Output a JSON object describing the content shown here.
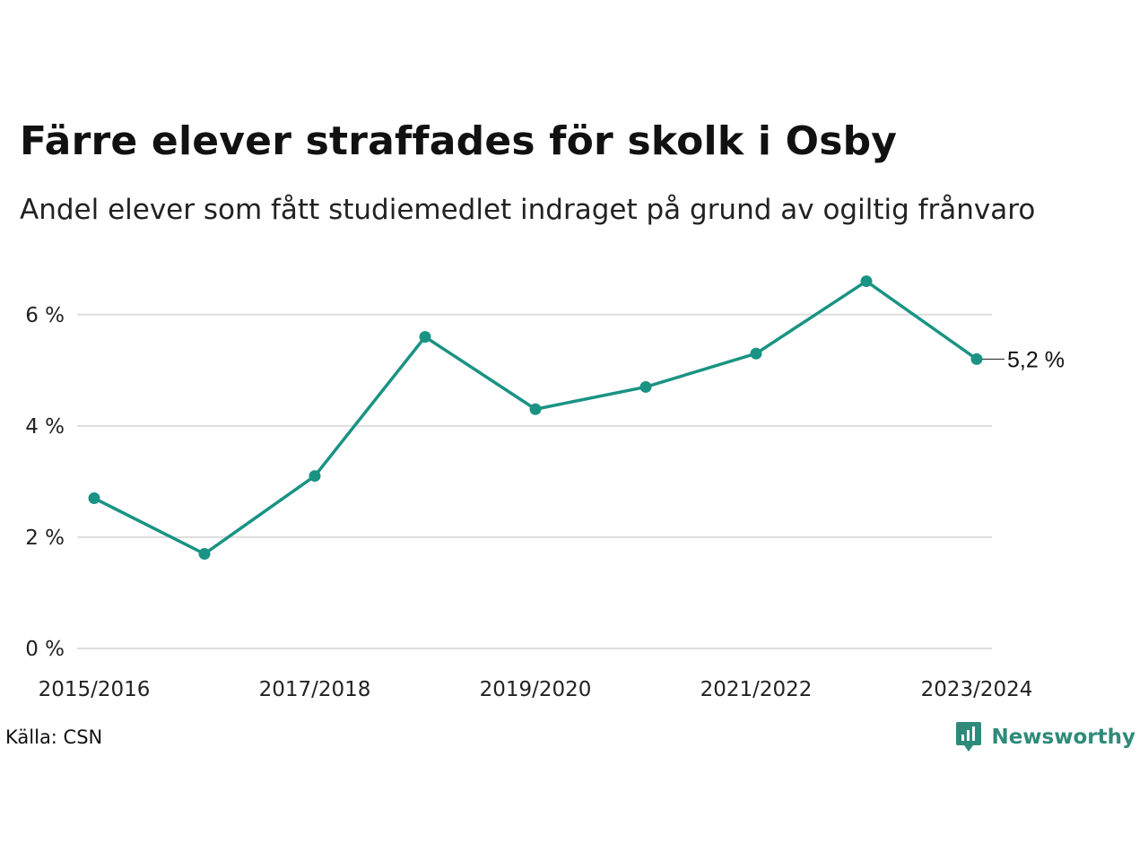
{
  "header": {
    "title": "Färre elever straffades för skolk i Osby",
    "subtitle": "Andel elever som fått studiemedlet indraget på grund av ogiltig frånvaro"
  },
  "footer": {
    "source": "Källa: CSN",
    "brand": "Newsworthy",
    "brand_icon": "newsworthy-logo-icon"
  },
  "colors": {
    "line": "#1a9384",
    "grid": "#dddddd",
    "brand": "#2f8a7a"
  },
  "chart_data": {
    "type": "line",
    "x": [
      "2015/2016",
      "2016/2017",
      "2017/2018",
      "2018/2019",
      "2019/2020",
      "2020/2021",
      "2021/2022",
      "2022/2023",
      "2023/2024"
    ],
    "x_tick_labels": [
      "2015/2016",
      "",
      "2017/2018",
      "",
      "2019/2020",
      "",
      "2021/2022",
      "",
      "2023/2024"
    ],
    "series": [
      {
        "values": [
          2.7,
          1.7,
          3.1,
          5.6,
          4.3,
          4.7,
          5.3,
          6.6,
          5.2
        ]
      }
    ],
    "y_ticks": [
      0,
      2,
      4,
      6
    ],
    "y_tick_labels": [
      "0 %",
      "2 %",
      "4 %",
      "6 %"
    ],
    "ylim": [
      0,
      6.98
    ],
    "grid": true,
    "end_label": "5,2 %"
  }
}
